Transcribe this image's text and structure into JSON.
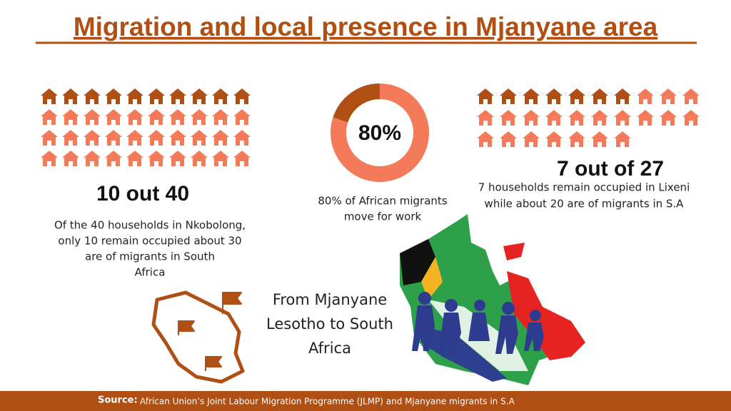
{
  "title": "Migration and local presence in Mjanyane area",
  "left": {
    "headline": "10 out 40",
    "text": [
      "Of the 40 households in Nkobolong,",
      "only 10 remain occupied about 30",
      "are of migrants in South",
      "Africa"
    ],
    "icons": {
      "occupied": 10,
      "total": 40
    }
  },
  "center": {
    "donut": {
      "value": 80,
      "label": "80%"
    },
    "text": [
      "80% of African migrants",
      "move for work"
    ]
  },
  "right": {
    "headline": "7 out of 27",
    "text": [
      "7 households remain occupied in Lixeni",
      "while about 20 are of migrants in S.A"
    ],
    "icons": {
      "occupied": 7,
      "total": 27
    }
  },
  "map_caption": [
    "From Mjanyane",
    "Lesotho to South",
    "Africa"
  ],
  "footer": {
    "label": "Source:",
    "text": "African Union’s Joint Labour Migration Programme (JLMP) and Mjanyane migrants in S.A"
  }
}
